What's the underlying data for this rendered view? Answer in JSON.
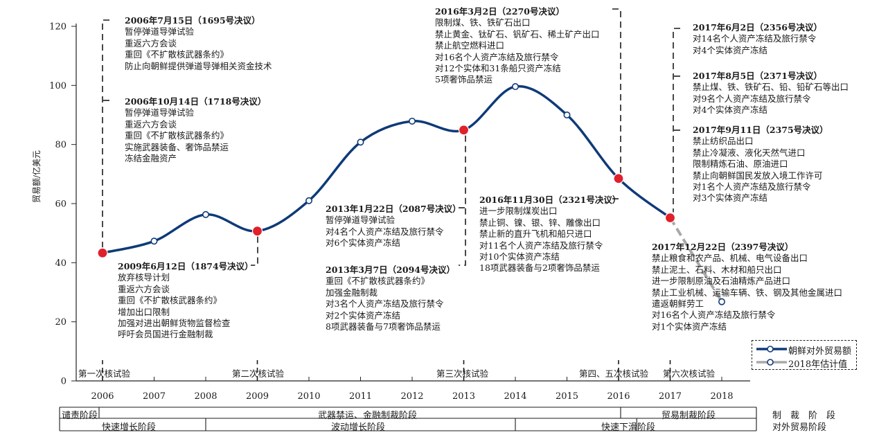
{
  "chart_data": {
    "type": "line",
    "ylabel": "贸易额/亿美元",
    "ylim": [
      0,
      120
    ],
    "yticks": [
      "0",
      "20",
      "40",
      "60",
      "80",
      "100",
      "120"
    ],
    "categories": [
      "2006",
      "2007",
      "2008",
      "2009",
      "2010",
      "2011",
      "2012",
      "2013",
      "2014",
      "2015",
      "2016",
      "2017",
      "2018"
    ],
    "series": [
      {
        "name": "朝鲜对外贸易额",
        "x": [
          2006,
          2007,
          2008,
          2009,
          2010,
          2011,
          2012,
          2013,
          2014,
          2015,
          2016,
          2017
        ],
        "values": [
          43.3,
          47.3,
          56.3,
          50.7,
          61.0,
          80.8,
          87.9,
          84.9,
          99.6,
          90.0,
          68.5,
          55.2
        ],
        "color": "#0e3a78",
        "highlight_years": [
          2006,
          2009,
          2013,
          2016,
          2017
        ],
        "highlight_color": "#e0202a"
      },
      {
        "name": "2018年估计值",
        "x": [
          2017,
          2018
        ],
        "values": [
          55.2,
          26.8
        ],
        "color": "#a9a9a9",
        "dashed": true
      }
    ],
    "legend": "bottom-right",
    "nuclear_tests": [
      {
        "year": 2006,
        "label": "第一次核试验"
      },
      {
        "year": 2009,
        "label": "第二次核试验"
      },
      {
        "year": 2013,
        "label": "第三次核试验"
      },
      {
        "year": 2016,
        "label": "第四、五次核试验"
      },
      {
        "year": 2017,
        "label": "第六次核试验"
      }
    ],
    "sanction_stages": [
      {
        "label": "谴责阶段",
        "from": 2005.5,
        "to": 2006.5
      },
      {
        "label": "武器禁运、金融制裁阶段",
        "from": 2006.5,
        "to": 2016
      },
      {
        "label": "贸易制裁阶段",
        "from": 2016,
        "to": 2018.5
      }
    ],
    "trade_stages": [
      {
        "label": "快速增长阶段",
        "from": 2005.5,
        "to": 2008
      },
      {
        "label": "波动增长阶段",
        "from": 2008,
        "to": 2014
      },
      {
        "label": "快速下滑阶段",
        "from": 2014,
        "to": 2016.5
      }
    ],
    "row_labels": {
      "sanction": "制　裁　阶　段",
      "trade": "对外贸易阶段"
    },
    "annotations": [
      {
        "id": "r1695",
        "title": "2006年7月15日（1695号决议）",
        "lines": [
          "暂停弹道导弹试验",
          "重返六方会谈",
          "重回《不扩散核武器条约》",
          "防止向朝鲜提供弹道导弹相关资金技术"
        ]
      },
      {
        "id": "r1718",
        "title": "2006年10月14日（1718号决议）",
        "lines": [
          "暂停弹道导弹试验",
          "重返六方会谈",
          "重回《不扩散核武器条约》",
          "实施武器装备、奢饰品禁运",
          "冻结金融资产"
        ]
      },
      {
        "id": "r1874",
        "title": "2009年6月12日（1874号决议）",
        "lines": [
          "放弃核导计划",
          "重返六方会谈",
          "重回《不扩散核武器条约》",
          "增加出口限制",
          "加强对进出朝鲜货物监督检查",
          "呼吁会员国进行金融制裁"
        ]
      },
      {
        "id": "r2087",
        "title": "2013年1月22日（2087号决议）",
        "lines": [
          "暂停弹道导弹试验",
          "对4名个人资产冻结及旅行禁令",
          "对6个实体资产冻结"
        ]
      },
      {
        "id": "r2094",
        "title": "2013年3月7日（2094号决议）",
        "lines": [
          "重回《不扩散核武器条约》",
          "加强金融制裁",
          "对3名个人资产冻结及旅行禁令",
          "对2个实体资产冻结",
          "8项武器装备与7项奢饰品禁运"
        ]
      },
      {
        "id": "r2270",
        "title": "2016年3月2日（2270号决议）",
        "lines": [
          "限制煤、铁、铁矿石出口",
          "禁止黄金、钛矿石、钒矿石、稀土矿产出口",
          "禁止航空燃料进口",
          "对16名个人资产冻结及旅行禁令",
          "对12个实体和31条船只资产冻结",
          "5项奢饰品禁运"
        ]
      },
      {
        "id": "r2321",
        "title": "2016年11月30日（2321号决议）",
        "lines": [
          "进一步限制煤炭出口",
          "禁止铜、镍、银、锌、雕像出口",
          "禁止新的直升飞机和船只进口",
          "对11名个人资产冻结及旅行禁令",
          "对10个实体资产冻结",
          "18项武器装备与2项奢饰品禁运"
        ]
      },
      {
        "id": "r2356",
        "title": "2017年6月2日（2356号决议）",
        "lines": [
          "对14名个人资产冻结及旅行禁令",
          "对4个实体资产冻结"
        ]
      },
      {
        "id": "r2371",
        "title": "2017年8月5日（2371号决议）",
        "lines": [
          "禁止煤、铁、铁矿石、铅、铅矿石等出口",
          "对9名个人资产冻结及旅行禁令",
          "对4个实体资产冻结"
        ]
      },
      {
        "id": "r2375",
        "title": "2017年9月11日（2375号决议）",
        "lines": [
          "禁止纺织品出口",
          "禁止冷凝液、液化天然气进口",
          "限制精炼石油、原油进口",
          "禁止向朝鲜国民发放入境工作许可",
          "对1名个人资产冻结及旅行禁令",
          "对3个实体资产冻结"
        ]
      },
      {
        "id": "r2397",
        "title": "2017年12月22日（2397号决议）",
        "lines": [
          "禁止粮食和农产品、机械、电气设备出口",
          "禁止泥土、石料、木材和船只出口",
          "进一步限制原油及石油精炼产品进口",
          "禁止工业机械、运输车辆、铁、钢及其他金属进口",
          "遣返朝鲜劳工",
          "对16名个人资产冻结及旅行禁令",
          "对1个实体资产冻结"
        ]
      }
    ]
  }
}
